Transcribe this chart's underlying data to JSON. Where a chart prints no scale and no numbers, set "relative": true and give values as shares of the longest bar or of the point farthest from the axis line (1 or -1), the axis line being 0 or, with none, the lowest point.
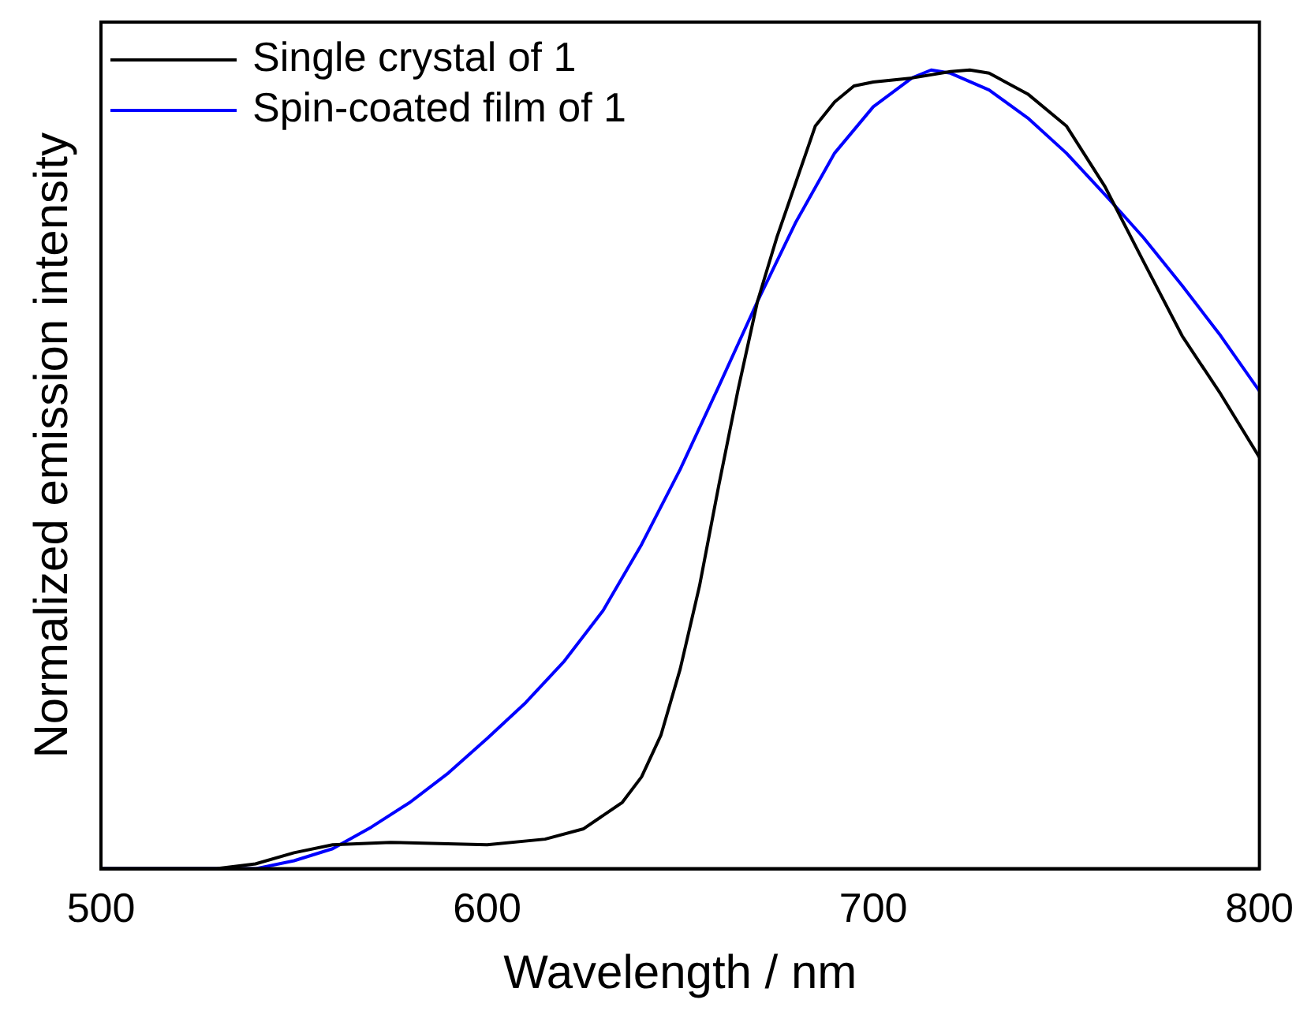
{
  "chart_data": {
    "type": "line",
    "xlabel": "Wavelength / nm",
    "ylabel": "Normalized emission intensity",
    "relative": true,
    "xlim": [
      500,
      800
    ],
    "xticks": [
      500,
      600,
      700,
      800
    ],
    "legend": "top left",
    "grid": false,
    "marker": "none",
    "line_style": "solid",
    "series": [
      {
        "name": "Single crystal of 1",
        "color": "#000000",
        "x": [
          500,
          530,
          540,
          550,
          560,
          575,
          600,
          615,
          625,
          635,
          640,
          645,
          650,
          655,
          660,
          665,
          670,
          675,
          680,
          685,
          690,
          695,
          700,
          710,
          720,
          725,
          730,
          740,
          750,
          760,
          770,
          780,
          790,
          800
        ],
        "values": [
          0,
          0,
          0.006,
          0.02,
          0.03,
          0.033,
          0.03,
          0.037,
          0.05,
          0.083,
          0.115,
          0.167,
          0.25,
          0.354,
          0.48,
          0.6,
          0.71,
          0.79,
          0.86,
          0.93,
          0.96,
          0.98,
          0.985,
          0.99,
          0.998,
          1,
          0.996,
          0.97,
          0.93,
          0.854,
          0.76,
          0.667,
          0.594,
          0.515
        ]
      },
      {
        "name": "Spin-coated film of 1",
        "color": "#0000ff",
        "x": [
          500,
          540,
          550,
          560,
          570,
          580,
          590,
          600,
          610,
          620,
          630,
          640,
          650,
          660,
          670,
          680,
          690,
          700,
          710,
          715,
          720,
          730,
          740,
          750,
          760,
          770,
          780,
          790,
          800
        ],
        "values": [
          0,
          0,
          0.01,
          0.025,
          0.052,
          0.083,
          0.12,
          0.163,
          0.208,
          0.26,
          0.323,
          0.406,
          0.5,
          0.604,
          0.71,
          0.81,
          0.896,
          0.954,
          0.99,
          1,
          0.996,
          0.975,
          0.94,
          0.896,
          0.844,
          0.79,
          0.73,
          0.667,
          0.598
        ]
      }
    ]
  }
}
